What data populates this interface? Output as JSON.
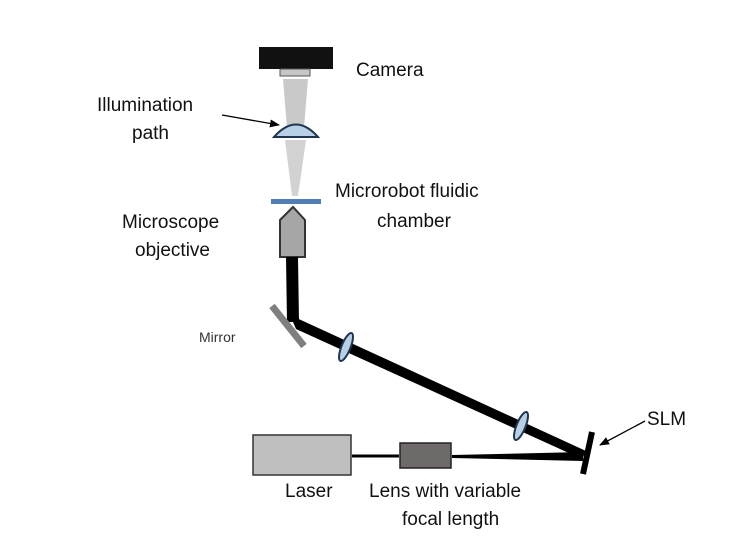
{
  "labels": {
    "camera": "Camera",
    "illumination_line1": "Illumination",
    "illumination_line2": "path",
    "chamber_line1": "Microrobot fluidic",
    "chamber_line2": "chamber",
    "objective_line1": "Microscope",
    "objective_line2": "objective",
    "mirror": "Mirror",
    "slm": "SLM",
    "laser": "Laser",
    "lens_line1": "Lens with variable",
    "lens_line2": "focal length"
  },
  "colors": {
    "beam": "#000000",
    "camera_body": "#111111",
    "illumination": "#c9c9c9",
    "lens_fill": "#b8d0e6",
    "lens_stroke": "#1f3550",
    "chamber": "#4f7fb5",
    "objective": "#a6a6a6",
    "mirror": "#7f7f7f",
    "laser_box": "#bfbfbf",
    "variable_lens_box": "#6e6a6a"
  }
}
